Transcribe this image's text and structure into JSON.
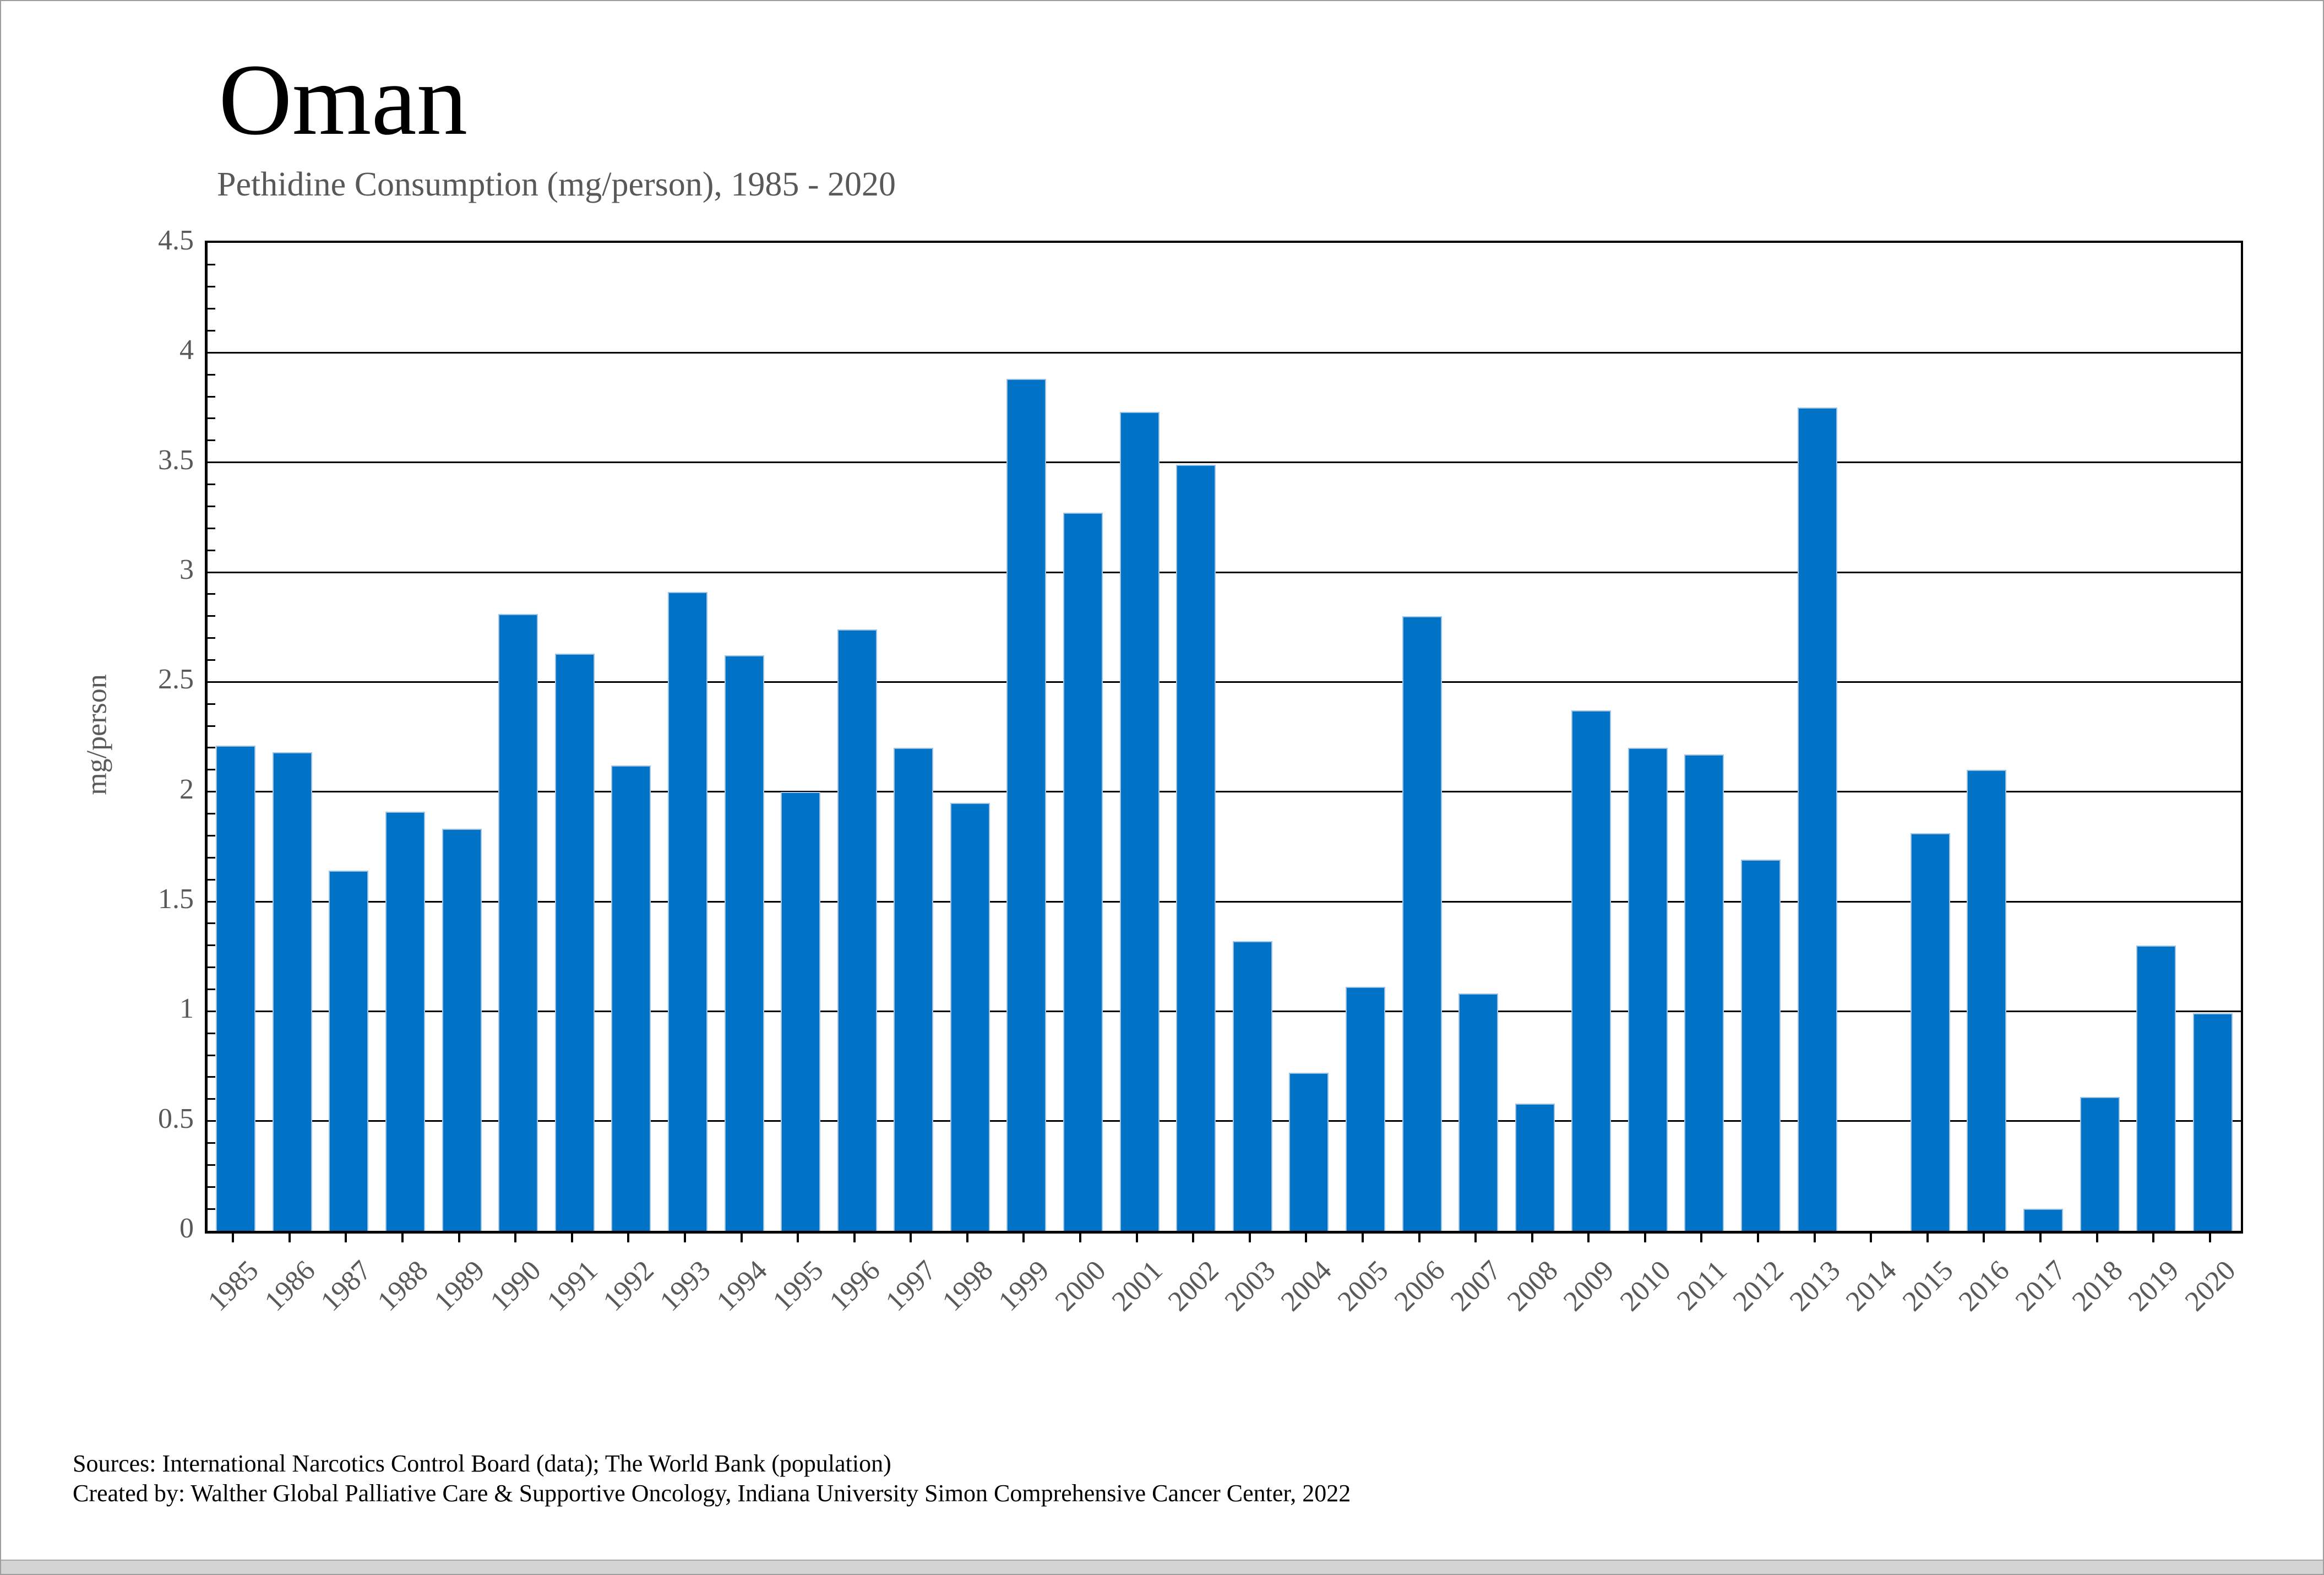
{
  "page": {
    "title": "Oman",
    "subtitle": "Pethidine Consumption (mg/person), 1985 - 2020",
    "footer": {
      "sources": "Sources: International Narcotics Control Board (data); The World Bank (population)",
      "created_by": "Created by: Walther Global Palliative Care & Supportive Oncology, Indiana University Simon Comprehensive Cancer Center, 2022"
    }
  },
  "chart_data": {
    "type": "bar",
    "title": "Oman",
    "subtitle": "Pethidine Consumption (mg/person), 1985 - 2020",
    "xlabel": "",
    "ylabel": "mg/person",
    "ylim": [
      0,
      4.5
    ],
    "ytick_step": 0.5,
    "y_minor_tick_step": 0.1,
    "y_tick_labels": [
      "0",
      "0.5",
      "1",
      "1.5",
      "2",
      "2.5",
      "3",
      "3.5",
      "4",
      "4.5"
    ],
    "grid": "horizontal",
    "legend_position": "none",
    "categories": [
      1985,
      1986,
      1987,
      1988,
      1989,
      1990,
      1991,
      1992,
      1993,
      1994,
      1995,
      1996,
      1997,
      1998,
      1999,
      2000,
      2001,
      2002,
      2003,
      2004,
      2005,
      2006,
      2007,
      2008,
      2009,
      2010,
      2011,
      2012,
      2013,
      2014,
      2015,
      2016,
      2017,
      2018,
      2019,
      2020
    ],
    "values": [
      2.21,
      2.18,
      1.64,
      1.91,
      1.83,
      2.81,
      2.63,
      2.12,
      2.91,
      2.62,
      2.0,
      2.74,
      2.2,
      1.95,
      3.88,
      3.27,
      3.73,
      3.49,
      1.32,
      0.72,
      1.11,
      2.8,
      1.08,
      0.58,
      2.37,
      2.2,
      2.17,
      1.69,
      3.75,
      0,
      1.81,
      2.1,
      0.1,
      0.61,
      1.3,
      0.99
    ]
  },
  "colors": {
    "bar_fill": "#0072C6",
    "bar_edge": "#9CC2E5",
    "axis": "#000000",
    "tick_label_gray": "#595959",
    "frame_gray": "#9E9E9E",
    "bottom_strip": "#D4D4D4"
  }
}
